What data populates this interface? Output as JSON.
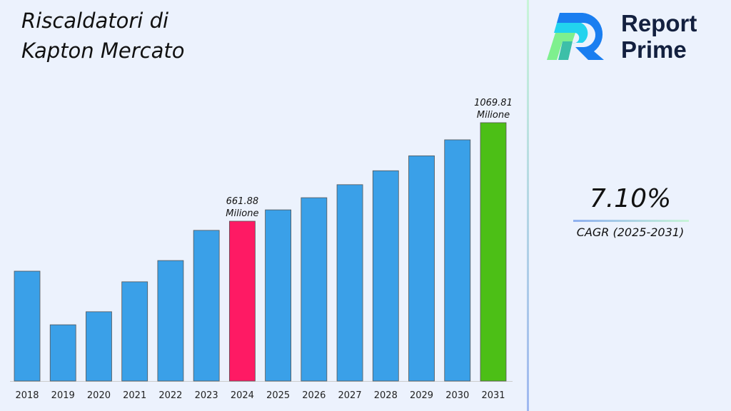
{
  "title": [
    "Riscaldatori di",
    "Kapton Mercato"
  ],
  "logo": {
    "line1": "Report",
    "line2": "Prime"
  },
  "cagr": {
    "value": "7.10%",
    "label": "CAGR (2025-2031)"
  },
  "colors": {
    "default_bar": "#3aa0e8",
    "highlight_2024": "#fe1a64",
    "highlight_2031": "#4cbf16"
  },
  "chart_data": {
    "type": "bar",
    "categories": [
      "2018",
      "2019",
      "2020",
      "2021",
      "2022",
      "2023",
      "2024",
      "2025",
      "2026",
      "2027",
      "2028",
      "2029",
      "2030",
      "2031"
    ],
    "values": [
      455,
      233,
      287,
      411,
      499,
      624,
      661.88,
      708.9,
      759.2,
      813.1,
      870.9,
      932.7,
      998.9,
      1069.81
    ],
    "data_labels": {
      "2024": [
        "661.88",
        "Milione"
      ],
      "2031": [
        "1069.81",
        "Milione"
      ]
    },
    "ylim": [
      0,
      1100
    ],
    "grid": false,
    "xlabel": "",
    "ylabel": ""
  }
}
